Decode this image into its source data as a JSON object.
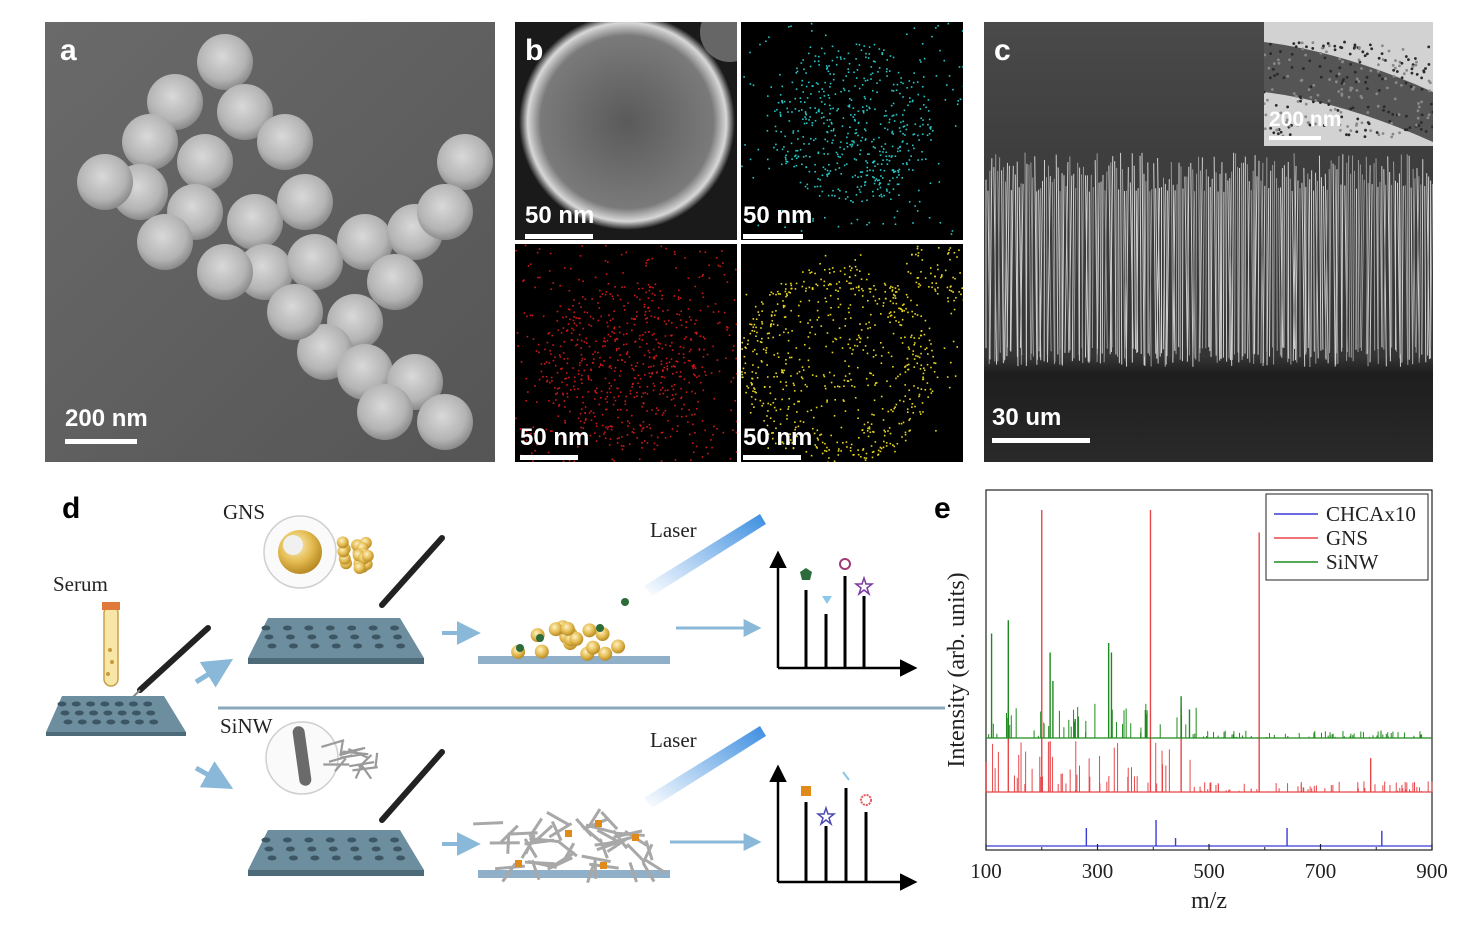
{
  "panels": {
    "a": {
      "letter": "a",
      "scale": "200 nm"
    },
    "b": {
      "letter": "b",
      "scales": [
        "50 nm",
        "50 nm",
        "50 nm",
        "50 nm"
      ]
    },
    "c": {
      "letter": "c",
      "scale": "30 um",
      "inset_scale": "200 nm"
    },
    "d": {
      "letter": "d",
      "serum": "Serum",
      "gns": "GNS",
      "sinw": "SiNW",
      "laser_top": "Laser",
      "laser_bottom": "Laser"
    },
    "e": {
      "letter": "e"
    }
  },
  "colors": {
    "chca": "#3b3bd6",
    "gns": "#e8474a",
    "sinw": "#1f8a1f",
    "plate": "#6d8e9e",
    "arrow": "#8ab8d8"
  },
  "chart_data": {
    "type": "line",
    "xlabel": "m/z",
    "ylabel": "Intensity (arb. units)",
    "xlim": [
      100,
      900
    ],
    "xticks": [
      "100",
      "300",
      "500",
      "700",
      "900"
    ],
    "legend_position": "top-right",
    "legend": [
      "CHCAx10",
      "GNS",
      "SiNW"
    ],
    "series": [
      {
        "name": "CHCAx10",
        "peaks": [
          [
            280,
            0.45
          ],
          [
            405,
            0.65
          ],
          [
            440,
            0.2
          ],
          [
            640,
            0.45
          ],
          [
            810,
            0.38
          ]
        ]
      },
      {
        "name": "GNS",
        "peaks": [
          [
            200,
            1.0
          ],
          [
            395,
            1.0
          ],
          [
            590,
            0.92
          ],
          [
            140,
            0.3
          ],
          [
            215,
            0.18
          ],
          [
            450,
            0.3
          ],
          [
            790,
            0.12
          ]
        ]
      },
      {
        "name": "SiNW",
        "peaks": [
          [
            140,
            0.62
          ],
          [
            110,
            0.55
          ],
          [
            215,
            0.45
          ],
          [
            220,
            0.3
          ],
          [
            320,
            0.5
          ],
          [
            325,
            0.45
          ],
          [
            450,
            0.22
          ],
          [
            465,
            0.15
          ],
          [
            260,
            0.1
          ]
        ]
      }
    ]
  }
}
